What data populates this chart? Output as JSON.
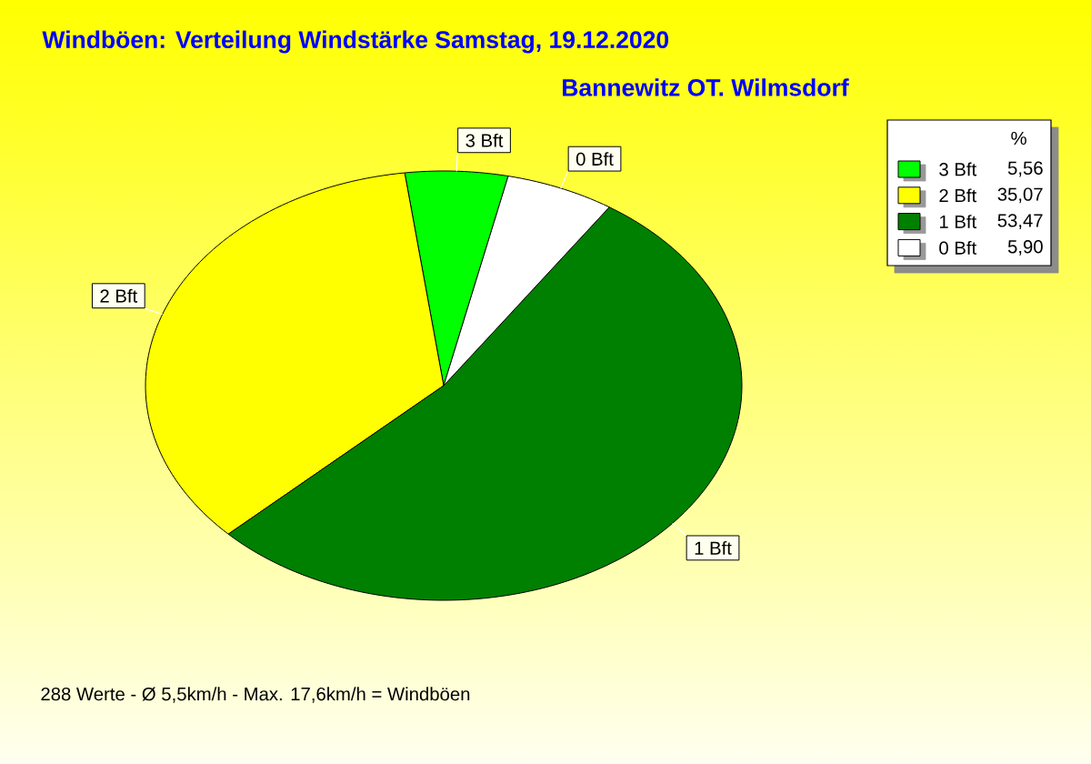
{
  "chart_data": {
    "type": "pie",
    "title": "Windböen: Verteilung Windstärke  Samstag, 19.12.2020",
    "subtitle": "Bannewitz OT. Wilmsdorf",
    "categories": [
      "3 Bft",
      "2 Bft",
      "1 Bft",
      "0 Bft"
    ],
    "values": [
      5.56,
      35.07,
      53.47,
      5.9
    ],
    "value_labels": [
      "5,56",
      "35,07",
      "53,47",
      "5,90"
    ],
    "colors": [
      "#00ff00",
      "#ffff00",
      "#008000",
      "#ffffff"
    ],
    "legend": "top right",
    "legend_title": "%",
    "annotations": [
      "288 Werte - Ø 5,5km/h - Max. 17,6km/h = Windböen"
    ]
  }
}
